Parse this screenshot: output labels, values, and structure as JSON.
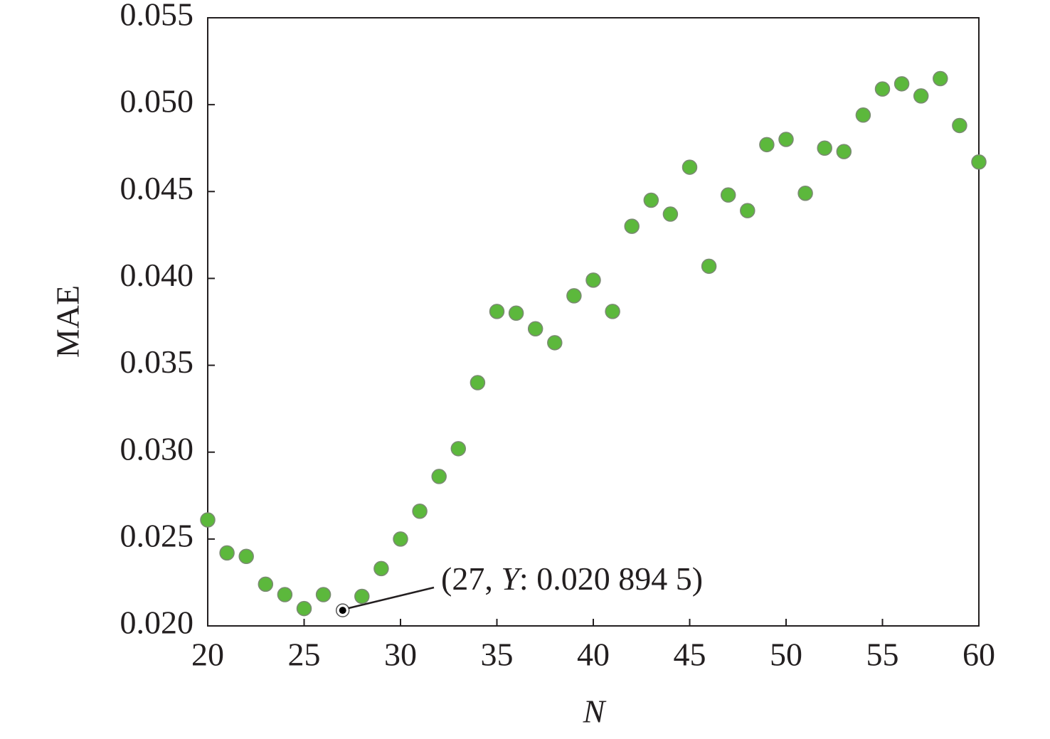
{
  "chart_data": {
    "type": "scatter",
    "x_label": "N",
    "y_label": "MAE",
    "x": [
      20,
      21,
      22,
      23,
      24,
      25,
      26,
      27,
      28,
      29,
      30,
      31,
      32,
      33,
      34,
      35,
      36,
      37,
      38,
      39,
      40,
      41,
      42,
      43,
      44,
      45,
      46,
      47,
      48,
      49,
      50,
      51,
      52,
      53,
      54,
      55,
      56,
      57,
      58,
      59,
      60
    ],
    "series": [
      {
        "color": "#5cb83c",
        "values": [
          0.0261,
          0.0242,
          0.024,
          0.0224,
          0.0218,
          0.021,
          0.0218,
          0.0208945,
          0.0217,
          0.0233,
          0.025,
          0.0266,
          0.0286,
          0.0302,
          0.034,
          0.0381,
          0.038,
          0.0371,
          0.0363,
          0.039,
          0.0399,
          0.0381,
          0.043,
          0.0445,
          0.0437,
          0.0464,
          0.0407,
          0.0448,
          0.0439,
          0.0477,
          0.048,
          0.0449,
          0.0475,
          0.0473,
          0.0494,
          0.0509,
          0.0512,
          0.0505,
          0.0515,
          0.0488,
          0.0467
        ]
      }
    ],
    "xlim": [
      20,
      60
    ],
    "xticks": [
      20,
      25,
      30,
      35,
      40,
      45,
      50,
      55,
      60
    ],
    "ylim": [
      0.02,
      0.055
    ],
    "yticks": [
      {
        "value": 0.02,
        "label": "0.020"
      },
      {
        "value": 0.025,
        "label": "0.025"
      },
      {
        "value": 0.03,
        "label": "0.030"
      },
      {
        "value": 0.035,
        "label": "0.035"
      },
      {
        "value": 0.04,
        "label": "0.040"
      },
      {
        "value": 0.045,
        "label": "0.045"
      },
      {
        "value": 0.05,
        "label": "0.050"
      },
      {
        "value": 0.055,
        "label": "0.055"
      }
    ],
    "grid": false,
    "annotation": {
      "x": 27,
      "color": "#000000",
      "text_parts": [
        "(27, ",
        "Y",
        ": 0.020 894 5)"
      ]
    }
  }
}
